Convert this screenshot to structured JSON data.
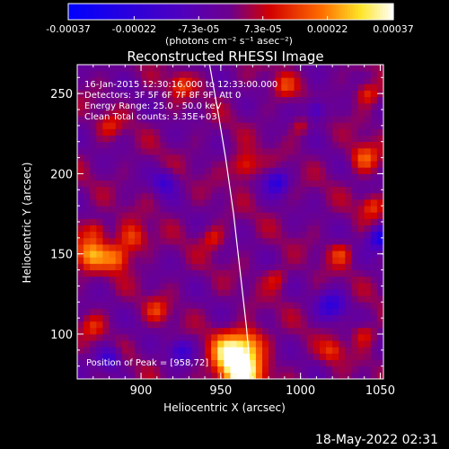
{
  "chart_data": {
    "type": "heatmap",
    "title": "Reconstructed RHESSI Image",
    "xlabel": "Heliocentric X (arcsec)",
    "ylabel": "Heliocentric Y (arcsec)",
    "xlim": [
      860,
      1052
    ],
    "ylim": [
      72,
      268
    ],
    "x_ticks": [
      900,
      950,
      1000,
      1050
    ],
    "y_ticks": [
      100,
      150,
      200,
      250
    ],
    "colorbar": {
      "range": [
        -0.00037,
        0.00037
      ],
      "tick_values": [
        -0.00037,
        -0.00022,
        -7.3e-05,
        7.3e-05,
        0.00022,
        0.00037
      ],
      "tick_labels": [
        "-0.00037",
        "-0.00022",
        "-7.3e-05",
        "7.3e-05",
        "0.00022",
        "0.00037"
      ],
      "units_label": "(photons cm⁻² s⁻¹ asec⁻²)"
    },
    "info_lines": [
      "16-Jan-2015 12:30:16.000 to 12:33:00.000",
      "Detectors: 3F 5F 6F 7F 8F 9F, Att 0",
      "Energy Range: 25.0 - 50.0 keV",
      "Clean    Total counts: 3.35E+03"
    ],
    "peak_label": "Position of Peak = [958,72]",
    "peak": {
      "x": 958,
      "y": 72
    },
    "limb": [
      [
        943,
        268
      ],
      [
        948,
        240
      ],
      [
        953,
        210
      ],
      [
        958,
        175
      ],
      [
        962,
        140
      ],
      [
        966,
        105
      ],
      [
        969,
        72
      ]
    ],
    "hotspots": [
      {
        "x": 962,
        "y": 77,
        "v": 0.00037,
        "r": 10
      },
      {
        "x": 955,
        "y": 90,
        "v": 0.00022,
        "r": 8
      },
      {
        "x": 968,
        "y": 95,
        "v": 0.00018,
        "r": 7
      },
      {
        "x": 868,
        "y": 150,
        "v": 0.00022,
        "r": 7
      },
      {
        "x": 885,
        "y": 148,
        "v": 0.0002,
        "r": 6
      },
      {
        "x": 895,
        "y": 160,
        "v": 0.00016,
        "r": 6
      },
      {
        "x": 872,
        "y": 165,
        "v": 0.00015,
        "r": 5
      },
      {
        "x": 965,
        "y": 205,
        "v": 0.00017,
        "r": 6
      },
      {
        "x": 1040,
        "y": 210,
        "v": 0.00018,
        "r": 6
      },
      {
        "x": 1045,
        "y": 180,
        "v": 0.00014,
        "r": 5
      },
      {
        "x": 1042,
        "y": 250,
        "v": 0.00015,
        "r": 5
      },
      {
        "x": 1025,
        "y": 150,
        "v": 0.00013,
        "r": 5
      },
      {
        "x": 1040,
        "y": 100,
        "v": 0.00012,
        "r": 5
      },
      {
        "x": 1020,
        "y": 90,
        "v": 0.00013,
        "r": 5
      },
      {
        "x": 925,
        "y": 255,
        "v": 0.00014,
        "r": 5
      },
      {
        "x": 945,
        "y": 160,
        "v": 0.00012,
        "r": 5
      },
      {
        "x": 880,
        "y": 230,
        "v": 0.0001,
        "r": 5
      },
      {
        "x": 910,
        "y": 115,
        "v": 0.00012,
        "r": 5
      },
      {
        "x": 985,
        "y": 135,
        "v": 0.00011,
        "r": 5
      },
      {
        "x": 1000,
        "y": 230,
        "v": 0.0001,
        "r": 4
      },
      {
        "x": 990,
        "y": 255,
        "v": 0.00012,
        "r": 5
      },
      {
        "x": 870,
        "y": 105,
        "v": 0.00011,
        "r": 5
      }
    ],
    "coldspots": [
      {
        "x": 1050,
        "y": 160,
        "v": -0.0003,
        "r": 5
      },
      {
        "x": 985,
        "y": 195,
        "v": -0.00022,
        "r": 5
      },
      {
        "x": 1020,
        "y": 118,
        "v": -0.0002,
        "r": 6
      },
      {
        "x": 925,
        "y": 90,
        "v": -0.00018,
        "r": 5
      },
      {
        "x": 1010,
        "y": 240,
        "v": -0.00018,
        "r": 5
      },
      {
        "x": 915,
        "y": 195,
        "v": -0.00016,
        "r": 5
      },
      {
        "x": 880,
        "y": 85,
        "v": -0.0002,
        "r": 5
      }
    ]
  },
  "footer": {
    "timestamp": "18-May-2022 02:31"
  }
}
